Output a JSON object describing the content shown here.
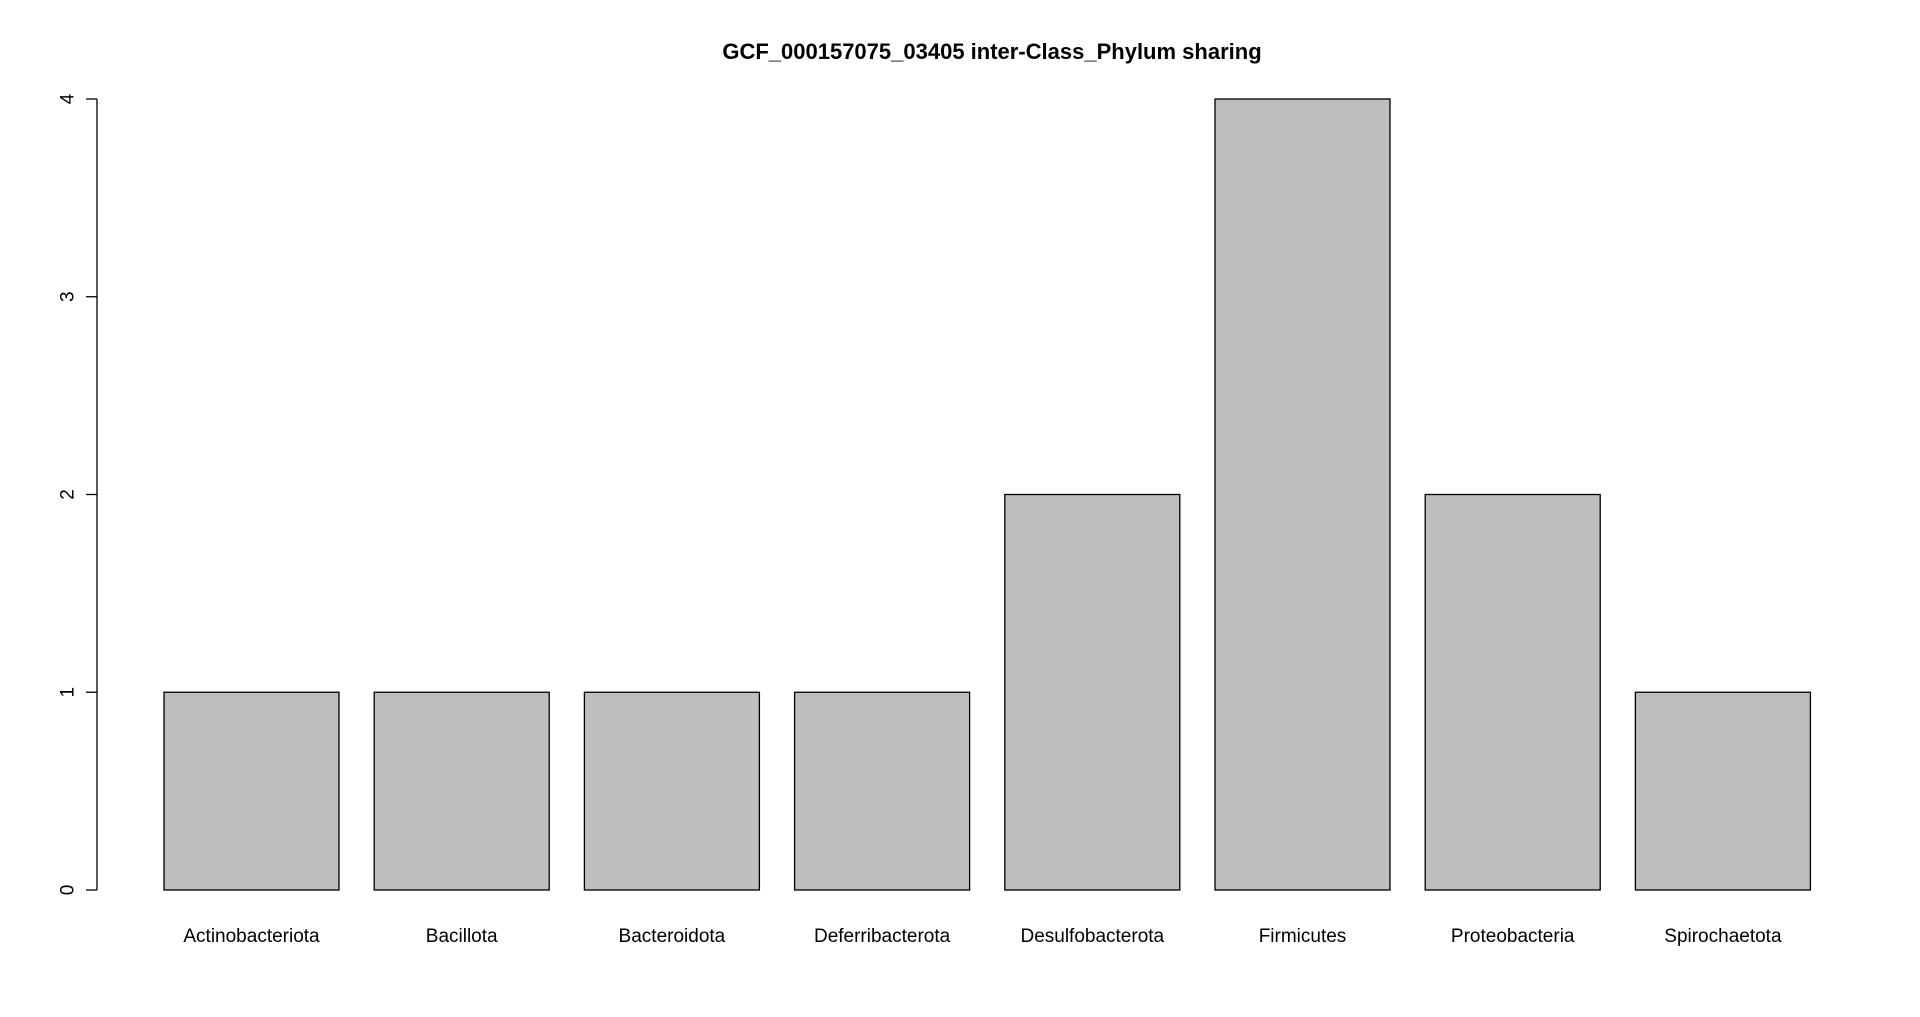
{
  "chart_data": {
    "type": "bar",
    "title": "GCF_000157075_03405 inter-Class_Phylum sharing",
    "xlabel": "",
    "ylabel": "",
    "categories": [
      "Actinobacteriota",
      "Bacillota",
      "Bacteroidota",
      "Deferribacterota",
      "Desulfobacterota",
      "Firmicutes",
      "Proteobacteria",
      "Spirochaetota"
    ],
    "values": [
      1,
      1,
      1,
      1,
      2,
      4,
      2,
      1
    ],
    "ylim": [
      0,
      4
    ],
    "yticks": [
      "0",
      "1",
      "2",
      "3",
      "4"
    ],
    "grid": false,
    "legend": "none",
    "bar_color": "#bebebe",
    "border_color": "#000000"
  }
}
